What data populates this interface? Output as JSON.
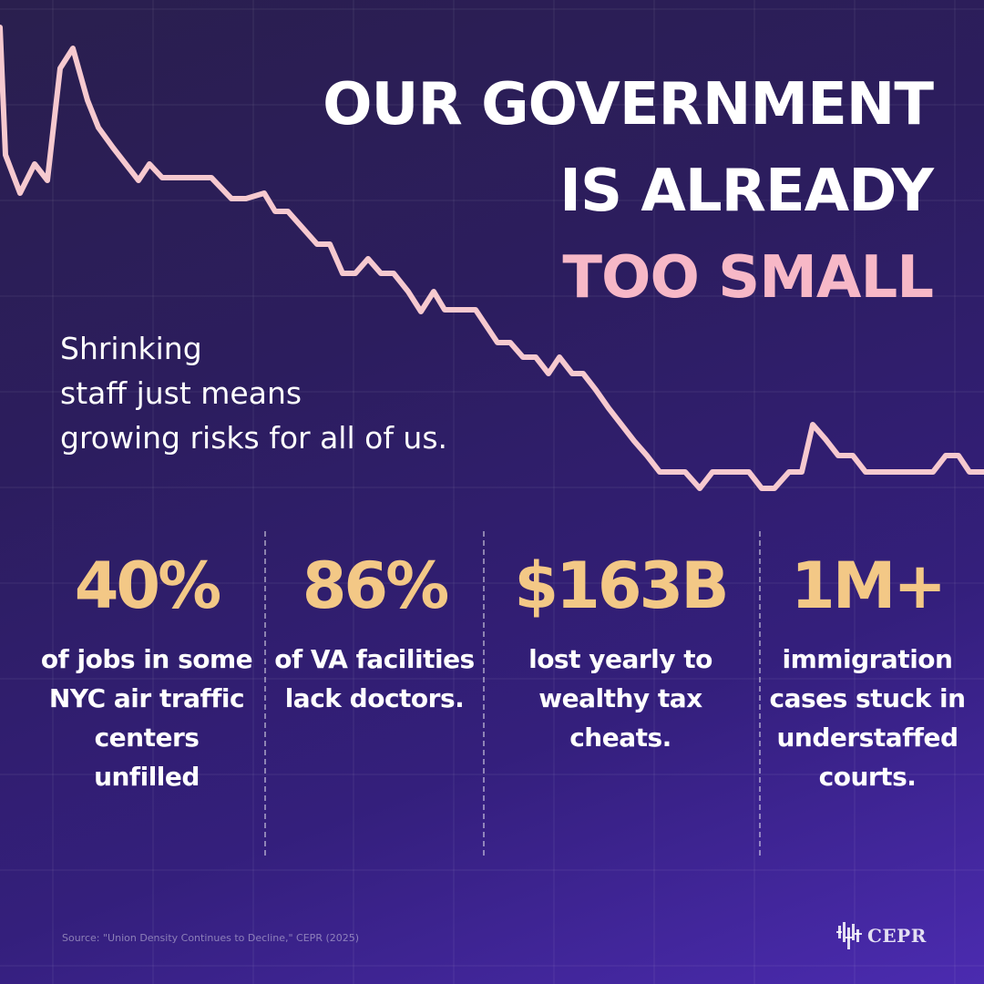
{
  "headline": {
    "line1": "OUR GOVERNMENT",
    "line2": "IS ALREADY",
    "line3": "TOO SMALL"
  },
  "subtitle": "Shrinking\nstaff just means\ngrowing risks for all of us.",
  "stats": [
    {
      "value": "40%",
      "text": "of jobs in some NYC air traffic centers unfilled"
    },
    {
      "value": "86%",
      "text": "of VA facilities lack doctors."
    },
    {
      "value": "$163B",
      "text": "lost yearly to wealthy tax cheats."
    },
    {
      "value": "1M+",
      "text": "immigration cases stuck in understaffed courts."
    }
  ],
  "source": "Source: \"Union Density Continues to Decline,\" CEPR (2025)",
  "logo": {
    "text": "CEPR",
    "icon": "cepr-bars-icon"
  },
  "colors": {
    "headline": "#ffffff",
    "accent_pink": "#f7b8c7",
    "stat_gold": "#f3c886",
    "trend_line": "#f6c9cf"
  },
  "chart_data": {
    "type": "line",
    "trend": "declining",
    "x_axis": "none",
    "y_axis": "none",
    "grid": true
  }
}
